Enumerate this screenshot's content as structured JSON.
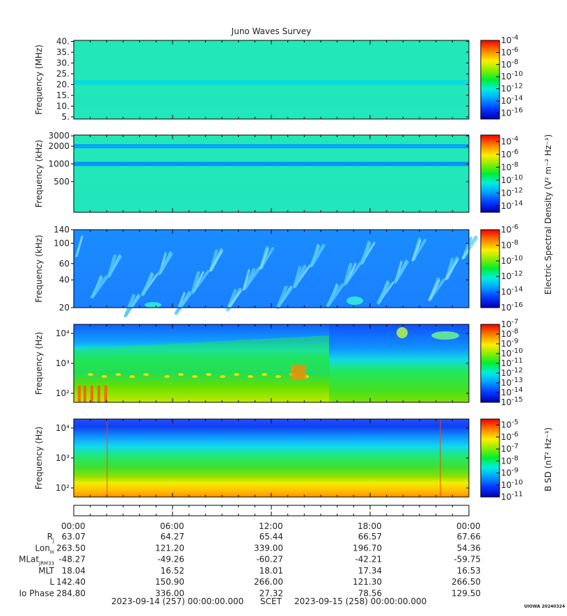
{
  "title": "Juno Waves Survey",
  "footer": {
    "start": "2023-09-14 (257) 00:00:00.000",
    "mid": "SCET",
    "end": "2023-09-15 (258) 00:00:00.000",
    "credit": "UIOWA 20240324"
  },
  "right_labels": {
    "electric": "Electric Spectral Density (V² m⁻² Hz⁻¹)",
    "magnetic": "B SD (nT² Hz⁻¹)"
  },
  "time_ticks": [
    "00:00",
    "06:00",
    "12:00",
    "18:00",
    "00:00"
  ],
  "ephemeris": [
    {
      "name": "RJ",
      "label": "R",
      "sub": "J",
      "values": [
        "63.07",
        "64.27",
        "65.44",
        "66.57",
        "67.66"
      ]
    },
    {
      "name": "lon",
      "label": "Lon",
      "sub": "III",
      "values": [
        "263.50",
        "121.20",
        "339.00",
        "196.70",
        "54.36"
      ]
    },
    {
      "name": "mlat",
      "label": "MLat",
      "sub": "JRM33",
      "values": [
        "-48.27",
        "-49.26",
        "-60.27",
        "-42.21",
        "-59.75"
      ]
    },
    {
      "name": "mlt",
      "label": "MLT",
      "sub": "",
      "values": [
        "18.04",
        "16.52",
        "18.01",
        "17.34",
        "16.53"
      ]
    },
    {
      "name": "L",
      "label": "L",
      "sub": "",
      "values": [
        "142.40",
        "150.90",
        "266.00",
        "121.30",
        "266.50"
      ]
    },
    {
      "name": "io",
      "label": "Io Phase",
      "sub": "",
      "values": [
        "284.80",
        "336.00",
        "27.32",
        "78.56",
        "129.50"
      ]
    }
  ],
  "chart_data": [
    {
      "type": "heatmap",
      "ylabel": "Frequency (MHz)",
      "yscale": "linear",
      "ylim": [
        4,
        40.5
      ],
      "yticks": [
        "40.",
        "35.",
        "30.",
        "25.",
        "20.",
        "15.",
        "10.",
        "5."
      ],
      "ytick_values": [
        40,
        35,
        30,
        25,
        20,
        15,
        10,
        5
      ],
      "colorbar": {
        "exponents": [
          "-4",
          "-6",
          "-8",
          "-10",
          "-12",
          "-14",
          "-16"
        ],
        "range": [
          -17,
          -4
        ]
      },
      "bands": [
        {
          "y": 21,
          "level": -12.5
        }
      ]
    },
    {
      "type": "heatmap",
      "ylabel": "Frequency (kHz)",
      "yscale": "log",
      "ylim": [
        150,
        3100
      ],
      "yticks": [
        "3000",
        "2000",
        "1000",
        "500"
      ],
      "ytick_values": [
        3000,
        2000,
        1000,
        500
      ],
      "colorbar": {
        "exponents": [
          "-4",
          "-6",
          "-8",
          "-10",
          "-12",
          "-14"
        ],
        "range": [
          -15,
          -3
        ]
      },
      "bands": [
        {
          "y": 2000,
          "level": -12
        },
        {
          "y": 1000,
          "level": -12.3
        }
      ]
    },
    {
      "type": "heatmap",
      "ylabel": "Frequency (kHz)",
      "yscale": "log",
      "ylim": [
        20,
        140
      ],
      "yticks": [
        "140",
        "100",
        "60",
        "40",
        "20"
      ],
      "ytick_values": [
        140,
        100,
        60,
        40,
        20
      ],
      "colorbar": {
        "exponents": [
          "-6",
          "-8",
          "-10",
          "-12",
          "-14",
          "-16"
        ],
        "range": [
          -16,
          -6
        ]
      },
      "bands": []
    },
    {
      "type": "heatmap",
      "ylabel": "Frequency (Hz)",
      "yscale": "log",
      "ylim": [
        50,
        20000
      ],
      "yticks": [
        "10⁴",
        "10³",
        "10²"
      ],
      "ytick_values": [
        10000,
        1000,
        100
      ],
      "colorbar": {
        "exponents": [
          "-7",
          "-8",
          "-9",
          "-10",
          "-11",
          "-12",
          "-13",
          "-14",
          "-15"
        ],
        "range": [
          -15,
          -7
        ]
      },
      "bands": []
    },
    {
      "type": "heatmap",
      "ylabel": "Frequency (Hz)",
      "yscale": "log",
      "ylim": [
        50,
        20000
      ],
      "yticks": [
        "10⁴",
        "10³",
        "10²"
      ],
      "ytick_values": [
        10000,
        1000,
        100
      ],
      "colorbar": {
        "exponents": [
          "-5",
          "-6",
          "-7",
          "-8",
          "-9",
          "-10",
          "-11"
        ],
        "range": [
          -11,
          -4.5
        ]
      },
      "bands": []
    }
  ]
}
